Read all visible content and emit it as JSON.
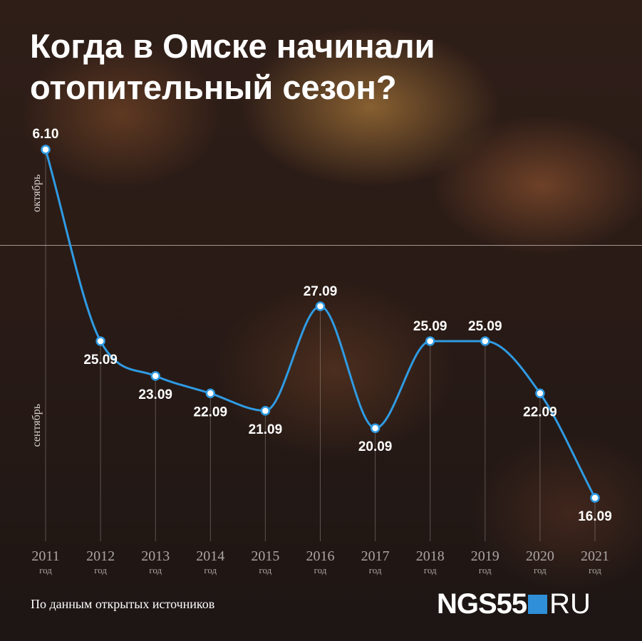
{
  "title": "Когда в Омске начинали отопительный сезон?",
  "source": "По данным открытых источников",
  "logo": {
    "brand": "NGS55",
    "suffix": "RU",
    "square_color": "#2f8fd8"
  },
  "colors": {
    "line": "#2f9be3",
    "gridline": "#c9c2bf",
    "marker_fill": "#ffffff"
  },
  "chart_data": {
    "type": "line",
    "title": "Когда в Омске начинали отопительный сезон?",
    "x": [
      "2011",
      "2012",
      "2013",
      "2014",
      "2015",
      "2016",
      "2017",
      "2018",
      "2019",
      "2020",
      "2021"
    ],
    "x_unit_label": "год",
    "y": [
      "2011-10-06",
      "2012-09-25",
      "2013-09-23",
      "2014-09-22",
      "2015-09-21",
      "2016-09-27",
      "2017-09-20",
      "2018-09-25",
      "2019-09-25",
      "2020-09-22",
      "2021-09-16"
    ],
    "data_labels": [
      "6.10",
      "25.09",
      "23.09",
      "22.09",
      "21.09",
      "27.09",
      "20.09",
      "25.09",
      "25.09",
      "22.09",
      "16.09"
    ],
    "y_bands": [
      "октябрь",
      "сентябрь"
    ],
    "vertical_gridlines": true,
    "smooth": true
  }
}
